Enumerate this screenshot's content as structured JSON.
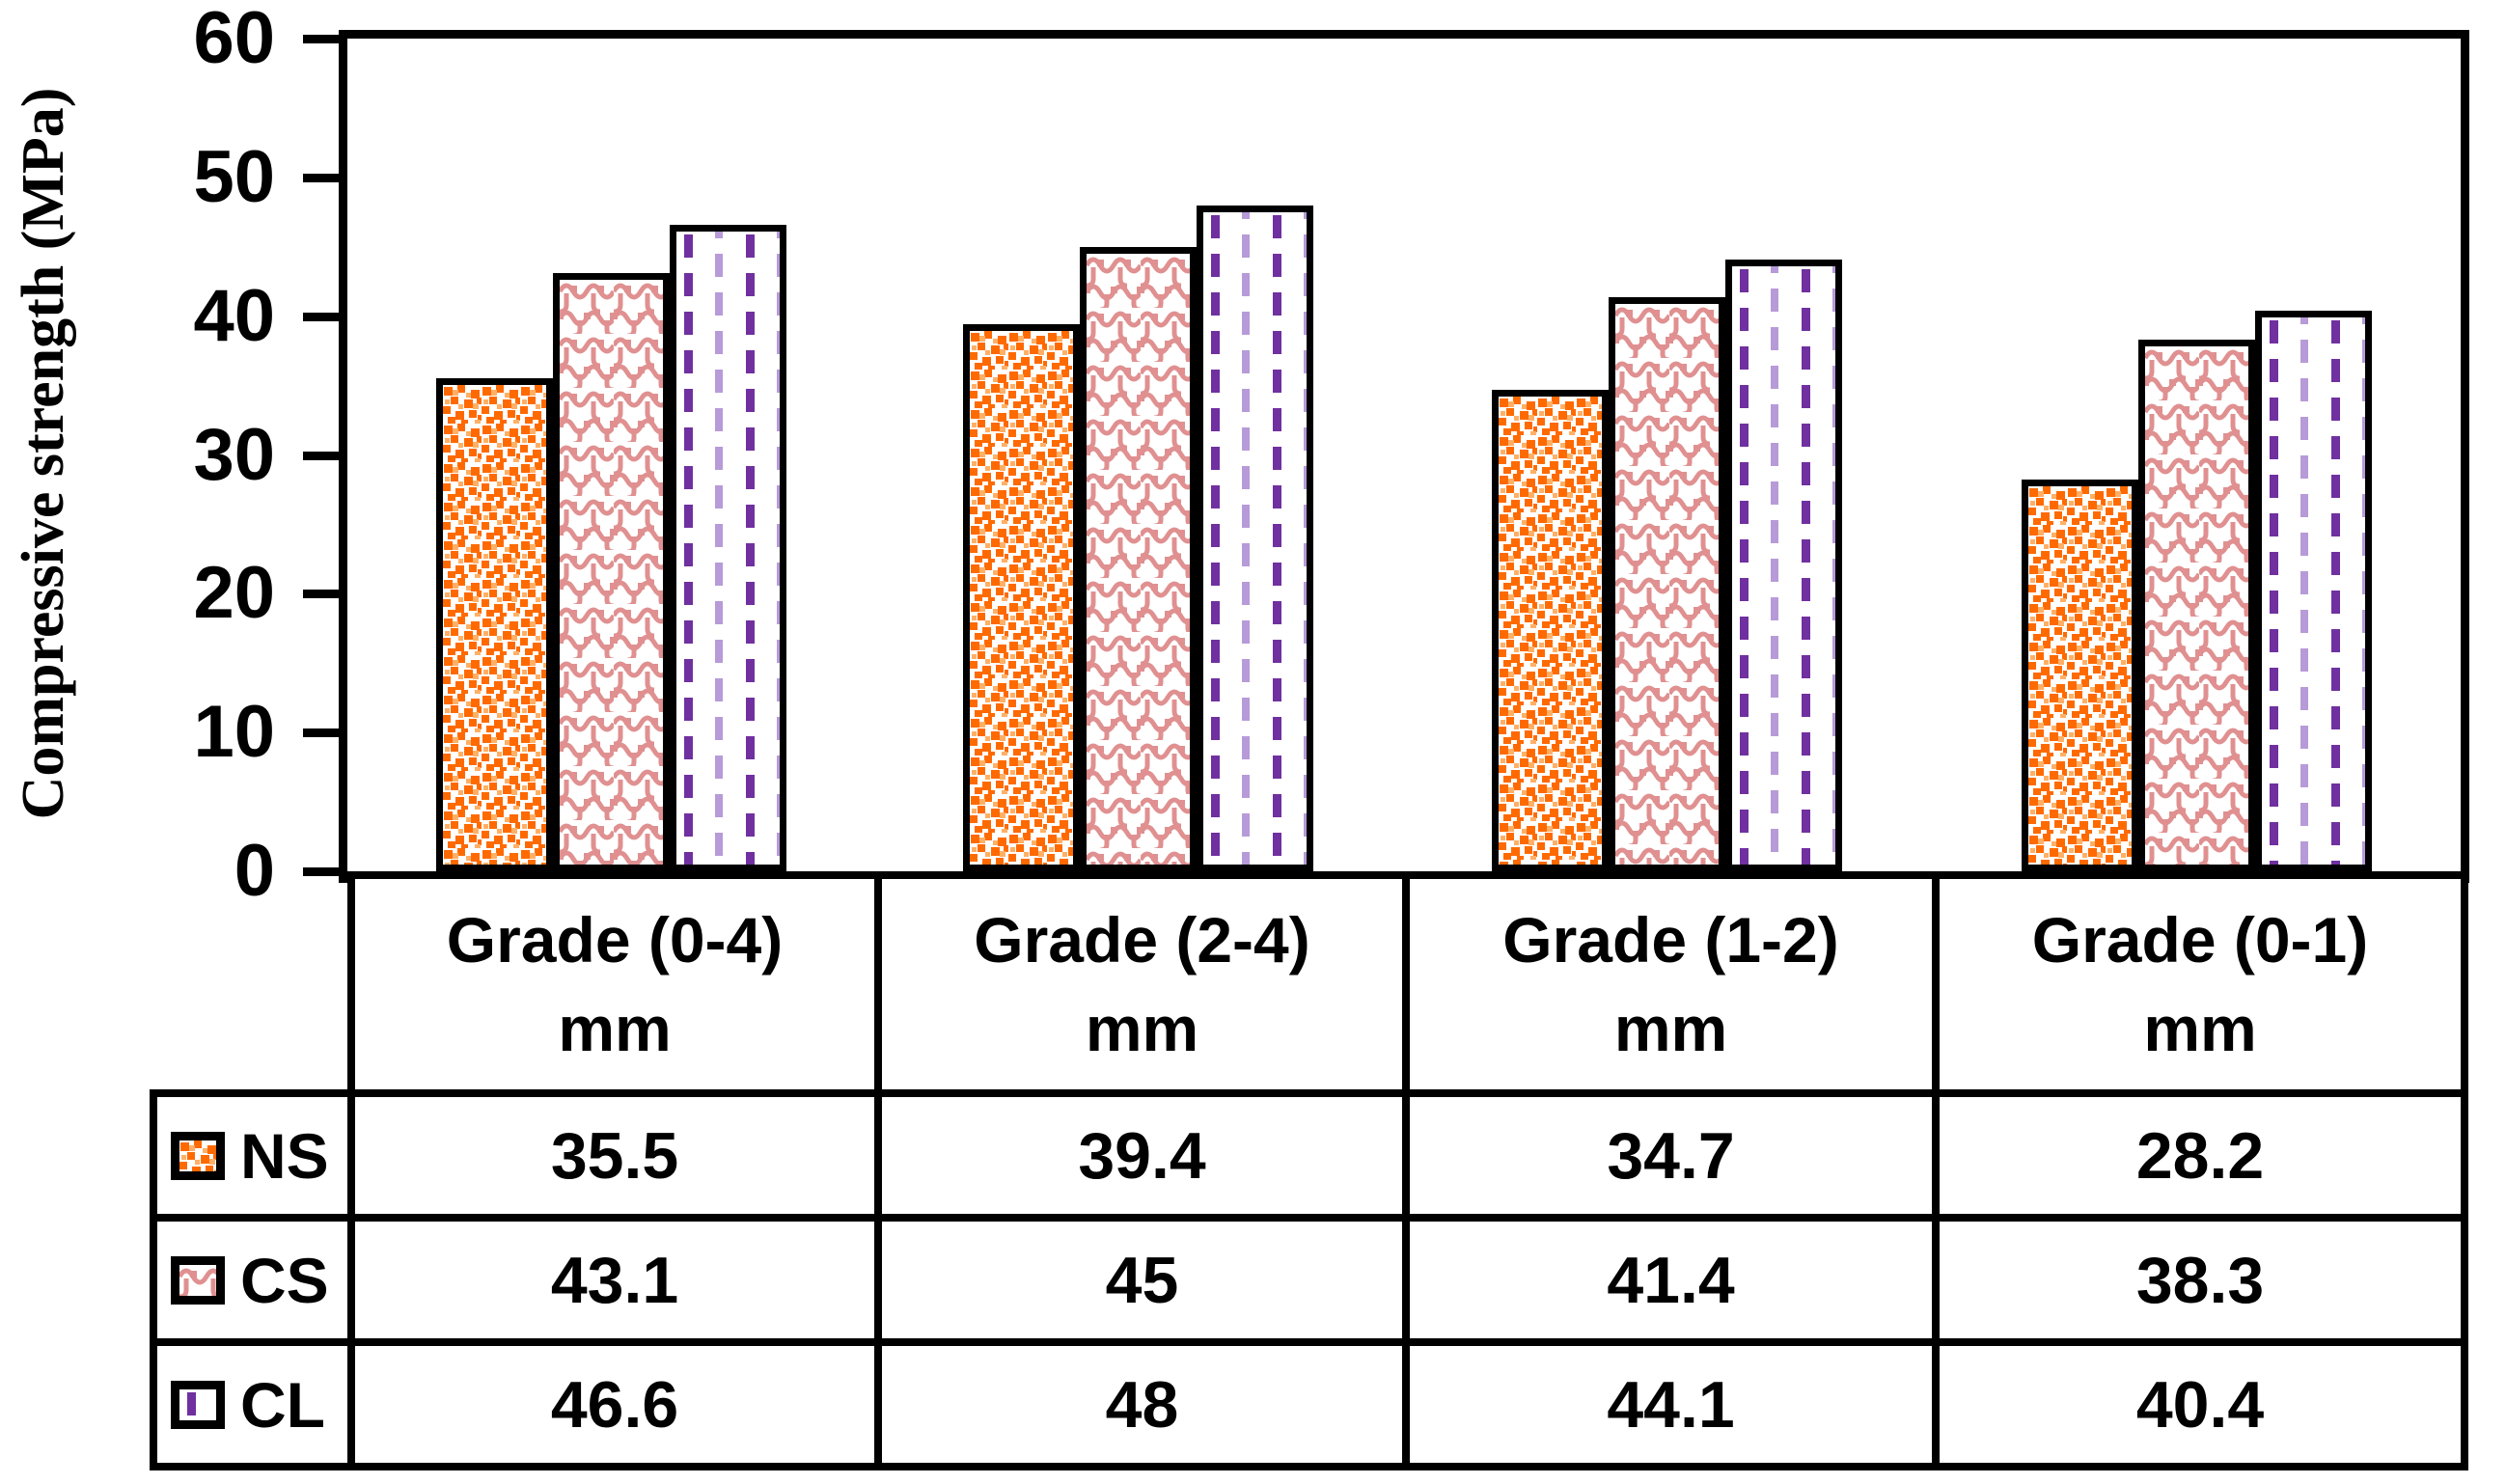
{
  "chart_data": {
    "type": "bar",
    "title": "",
    "ylabel": "Compressive strength (MPa)",
    "ylim": [
      0,
      60
    ],
    "yticks": [
      0,
      10,
      20,
      30,
      40,
      50,
      60
    ],
    "grid": false,
    "legend_position": "table-left-column",
    "axis_color": "#000000",
    "categories": [
      {
        "name": "Grade (0-4)",
        "unit": "mm"
      },
      {
        "name": "Grade (2-4)",
        "unit": "mm"
      },
      {
        "name": "Grade (1-2)",
        "unit": "mm"
      },
      {
        "name": "Grade (0-1)",
        "unit": "mm"
      }
    ],
    "series": [
      {
        "name": "NS",
        "pattern": "orange-dots",
        "color": "#FF6A00",
        "values": [
          35.5,
          39.4,
          34.7,
          28.2
        ]
      },
      {
        "name": "CS",
        "pattern": "salmon-divot",
        "color": "#E09090",
        "values": [
          43.1,
          45,
          41.4,
          38.3
        ]
      },
      {
        "name": "CL",
        "pattern": "purple-dashes",
        "color": "#7030A0",
        "values": [
          46.6,
          48,
          44.1,
          40.4
        ]
      }
    ]
  }
}
